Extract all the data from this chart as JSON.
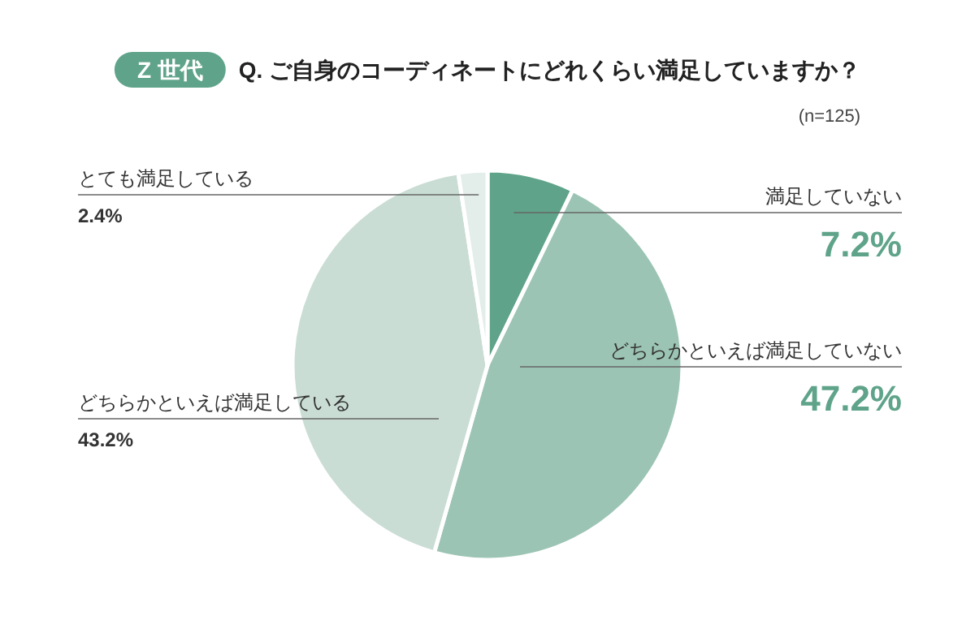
{
  "chart_data": {
    "type": "pie",
    "subtitle": "Z 世代",
    "title": "Q. ご自身のコーディネートにどれくらい満足していますか？",
    "annotations": [
      "(n=125)"
    ],
    "categories": [
      "満足していない",
      "どちらかといえば満足していない",
      "どちらかといえば満足している",
      "とても満足している"
    ],
    "values": [
      7.2,
      47.2,
      43.2,
      2.4
    ],
    "value_labels": [
      "7.2%",
      "47.2%",
      "43.2%",
      "2.4%"
    ],
    "colors": [
      "#5fa48a",
      "#9cc4b4",
      "#c9ddd4",
      "#e3ede9"
    ]
  }
}
